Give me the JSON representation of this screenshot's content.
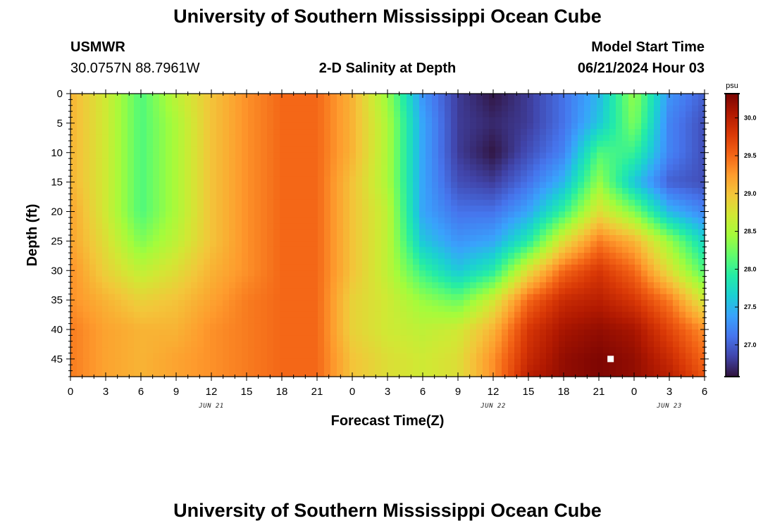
{
  "header": {
    "title": "University of Southern Mississippi Ocean Cube",
    "station_id": "USMWR",
    "station_coords": "30.0757N  88.7961W",
    "plot_title": "2-D Salinity at Depth",
    "start_label": "Model Start Time",
    "start_value": "06/21/2024 Hour 03"
  },
  "footer": {
    "title": "University of Southern Mississippi Ocean Cube"
  },
  "colors": {
    "palette": [
      "#30123b",
      "#4145ab",
      "#4675ed",
      "#39a2fc",
      "#1bcfd4",
      "#24eca6",
      "#61fc6c",
      "#a4fc3b",
      "#d1e834",
      "#f3c63a",
      "#fe9b2d",
      "#f36315",
      "#d93806",
      "#b11901",
      "#7a0402"
    ],
    "marker": "#ffffff"
  },
  "chart_data": {
    "type": "heatmap",
    "xlabel": "Forecast Time(Z)",
    "ylabel": "Depth (ft)",
    "x_tick_labels": [
      "0",
      "3",
      "6",
      "9",
      "12",
      "15",
      "18",
      "21",
      "0",
      "3",
      "6",
      "9",
      "12",
      "15",
      "18",
      "21",
      "0",
      "3",
      "6"
    ],
    "x_hours_range": [
      0,
      54
    ],
    "date_labels": [
      {
        "text": "JUN 21",
        "hour": 12
      },
      {
        "text": "JUN 22",
        "hour": 36
      },
      {
        "text": "JUN 23",
        "hour": 51
      }
    ],
    "y_tick_labels": [
      "0",
      "5",
      "10",
      "15",
      "20",
      "25",
      "30",
      "35",
      "40",
      "45"
    ],
    "ylim": [
      0,
      48
    ],
    "y_inverted": true,
    "colorbar": {
      "unit": "psu",
      "range": [
        26.58,
        30.32
      ],
      "tick_labels": [
        "27.0",
        "27.5",
        "28.0",
        "28.5",
        "29.0",
        "29.5",
        "30.0"
      ],
      "tick_values": [
        27.0,
        27.5,
        28.0,
        28.5,
        29.0,
        29.5,
        30.0
      ]
    },
    "marker_point": {
      "hour": 46,
      "depth": 45
    },
    "grid_hours": [
      0,
      3,
      6,
      9,
      12,
      15,
      18,
      21,
      24,
      27,
      30,
      33,
      36,
      39,
      42,
      45,
      48,
      51,
      54
    ],
    "grid_depths": [
      0,
      5,
      10,
      15,
      20,
      25,
      30,
      35,
      40,
      45,
      48
    ],
    "salinity_grid": [
      [
        29.1,
        28.7,
        28.1,
        28.6,
        29.0,
        29.3,
        29.5,
        29.5,
        29.1,
        28.4,
        27.3,
        26.8,
        26.6,
        26.8,
        27.1,
        27.5,
        28.4,
        27.3,
        27.0
      ],
      [
        29.1,
        28.7,
        28.1,
        28.5,
        29.0,
        29.3,
        29.5,
        29.5,
        29.1,
        28.5,
        27.4,
        26.8,
        26.7,
        26.8,
        27.1,
        27.6,
        28.3,
        27.2,
        26.9
      ],
      [
        29.1,
        28.7,
        28.1,
        28.5,
        29.0,
        29.3,
        29.5,
        29.5,
        29.1,
        28.5,
        27.4,
        26.8,
        26.6,
        26.9,
        27.2,
        28.1,
        28.0,
        27.2,
        26.9
      ],
      [
        29.1,
        28.7,
        28.1,
        28.5,
        29.0,
        29.3,
        29.5,
        29.5,
        29.0,
        28.5,
        27.4,
        26.9,
        26.8,
        27.1,
        27.5,
        28.4,
        27.6,
        27.0,
        26.9
      ],
      [
        29.2,
        28.7,
        28.1,
        28.5,
        29.0,
        29.3,
        29.5,
        29.5,
        29.0,
        28.6,
        27.4,
        27.1,
        27.1,
        27.4,
        28.0,
        28.8,
        28.3,
        27.5,
        27.2
      ],
      [
        29.2,
        28.8,
        28.3,
        28.6,
        29.0,
        29.3,
        29.5,
        29.5,
        29.0,
        28.6,
        27.6,
        27.3,
        27.4,
        27.9,
        28.8,
        29.4,
        29.1,
        28.4,
        27.7
      ],
      [
        29.3,
        28.9,
        28.6,
        28.8,
        29.1,
        29.3,
        29.5,
        29.5,
        29.0,
        28.6,
        28.0,
        27.6,
        27.9,
        28.8,
        29.5,
        29.8,
        29.5,
        28.8,
        28.1
      ],
      [
        29.3,
        29.1,
        28.9,
        29.0,
        29.2,
        29.4,
        29.5,
        29.5,
        28.9,
        28.7,
        28.4,
        28.2,
        28.7,
        29.5,
        29.9,
        30.0,
        29.8,
        29.4,
        28.7
      ],
      [
        29.4,
        29.2,
        29.1,
        29.1,
        29.3,
        29.4,
        29.5,
        29.5,
        28.9,
        28.7,
        28.6,
        28.7,
        29.1,
        29.8,
        30.1,
        30.2,
        30.1,
        29.7,
        29.3
      ],
      [
        29.4,
        29.2,
        29.1,
        29.2,
        29.3,
        29.4,
        29.5,
        29.5,
        29.0,
        28.8,
        28.7,
        28.8,
        29.3,
        29.9,
        30.2,
        30.3,
        30.2,
        29.9,
        29.5
      ],
      [
        29.4,
        29.2,
        29.1,
        29.2,
        29.3,
        29.4,
        29.5,
        29.5,
        29.0,
        28.8,
        28.7,
        28.8,
        29.3,
        30.0,
        30.2,
        30.3,
        30.2,
        30.0,
        29.6
      ]
    ]
  }
}
